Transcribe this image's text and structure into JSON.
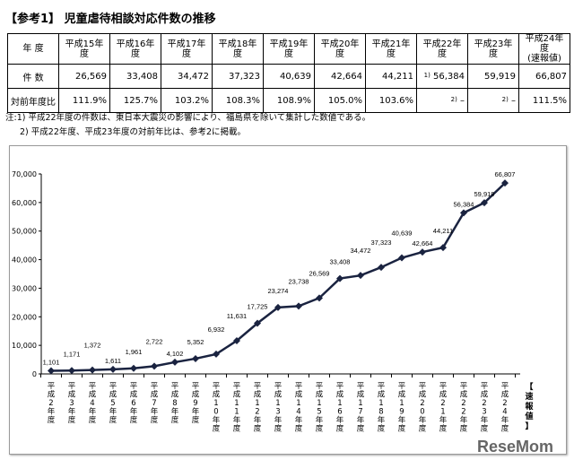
{
  "title": "【参考1】 児童虐待相談対応件数の推移",
  "table": {
    "row_headers": [
      "年 度",
      "件 数",
      "対前年度比"
    ],
    "years": [
      "平成15年度",
      "平成16年度",
      "平成17年度",
      "平成18年度",
      "平成19年度",
      "平成20年度",
      "平成21年度",
      "平成22年度",
      "平成23年度",
      "平成24年度\n(速報値)"
    ],
    "counts": [
      "26,569",
      "33,408",
      "34,472",
      "37,323",
      "40,639",
      "42,664",
      "44,211",
      "56,384",
      "59,919",
      "66,807"
    ],
    "count_notes": [
      "",
      "",
      "",
      "",
      "",
      "",
      "",
      "1)",
      "",
      ""
    ],
    "ratios": [
      "111.9%",
      "125.7%",
      "103.2%",
      "108.3%",
      "108.9%",
      "105.0%",
      "103.6%",
      "–",
      "–",
      "111.5%"
    ],
    "ratio_notes": [
      "",
      "",
      "",
      "",
      "",
      "",
      "",
      "2)",
      "2)",
      ""
    ]
  },
  "notes": [
    "注:1) 平成22年度の件数は、東日本大震災の影響により、福島県を除いて集計した数値である。",
    "2) 平成22年度、平成23年度の対前年比は、参考2に掲載。"
  ],
  "chart_data": {
    "type": "line",
    "categories": [
      "平成2年度",
      "平成3年度",
      "平成4年度",
      "平成5年度",
      "平成6年度",
      "平成7年度",
      "平成8年度",
      "平成9年度",
      "平成10年度",
      "平成11年度",
      "平成12年度",
      "平成13年度",
      "平成14年度",
      "平成15年度",
      "平成16年度",
      "平成17年度",
      "平成18年度",
      "平成19年度",
      "平成20年度",
      "平成21年度",
      "平成22年度",
      "平成23年度",
      "平成24年度"
    ],
    "values": [
      1101,
      1171,
      1372,
      1611,
      1961,
      2722,
      4102,
      5352,
      6932,
      11631,
      17725,
      23274,
      23738,
      26569,
      33408,
      34472,
      37323,
      40639,
      42664,
      44211,
      56384,
      59919,
      66807
    ],
    "ylim": [
      0,
      70000
    ],
    "yticks": [
      "0",
      "10,000",
      "20,000",
      "30,000",
      "40,000",
      "50,000",
      "60,000",
      "70,000"
    ],
    "last_label_note": "【速報値】",
    "grid": false,
    "color": "#1a2340"
  },
  "watermark": "ReseMom"
}
